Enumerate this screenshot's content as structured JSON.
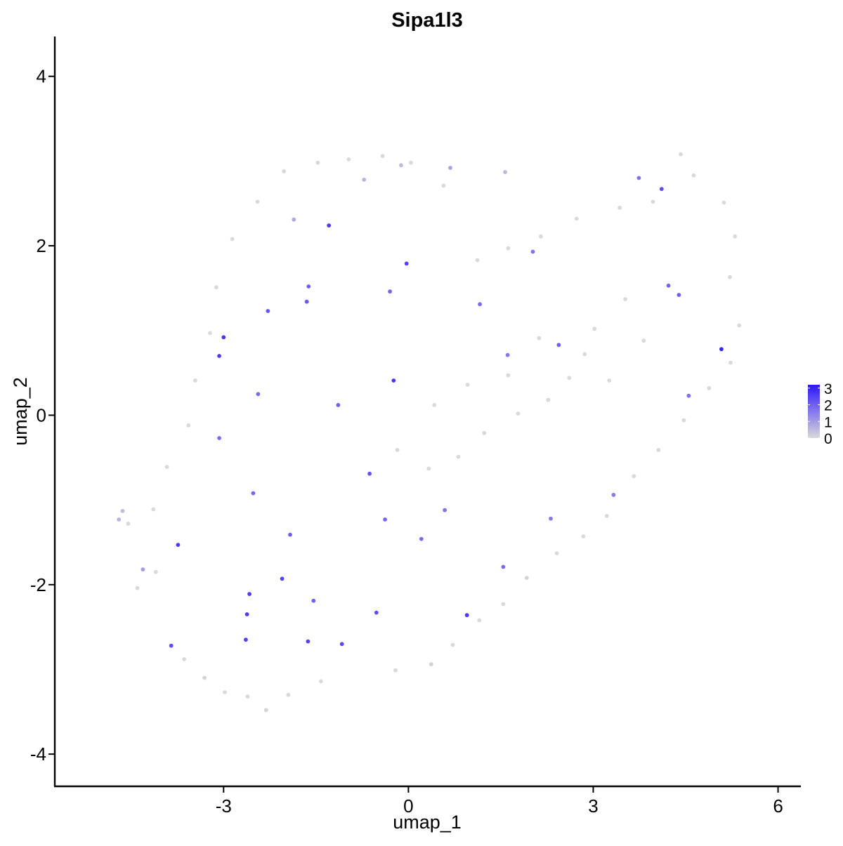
{
  "chart_data": {
    "type": "scatter",
    "title": "Sipa1l3",
    "xlabel": "umap_1",
    "ylabel": "umap_2",
    "xlim": [
      -5.74,
      6.37
    ],
    "ylim": [
      -4.38,
      4.47
    ],
    "x_ticks": [
      "-3",
      "0",
      "3",
      "6"
    ],
    "y_ticks": [
      "-4",
      "-2",
      "0",
      "2",
      "4"
    ],
    "grid": false,
    "legend": {
      "placement": "right",
      "ticks": [
        "3",
        "2",
        "1",
        "0"
      ],
      "range": [
        0,
        3.2
      ],
      "color_low": "#d9d9d9",
      "color_high": "#2e17ff"
    },
    "points": [
      [
        -1.29,
        2.24,
        2.6
      ],
      [
        -0.03,
        1.79,
        2.5
      ],
      [
        -3.0,
        0.92,
        2.7
      ],
      [
        -3.07,
        0.7,
        2.6
      ],
      [
        -0.24,
        0.41,
        2.7
      ],
      [
        5.08,
        0.78,
        3.0
      ],
      [
        4.11,
        2.67,
        2.3
      ],
      [
        -3.74,
        -1.53,
        2.6
      ],
      [
        -2.64,
        -2.65,
        2.5
      ],
      [
        -2.62,
        -2.35,
        2.6
      ],
      [
        -2.58,
        -2.11,
        2.6
      ],
      [
        -2.05,
        -1.93,
        2.5
      ],
      [
        0.95,
        -2.36,
        2.6
      ],
      [
        -0.52,
        -2.33,
        2.3
      ],
      [
        -1.63,
        -2.67,
        2.5
      ],
      [
        -1.08,
        -2.7,
        2.4
      ],
      [
        -3.85,
        -2.72,
        2.3
      ],
      [
        -1.54,
        -2.19,
        2.0
      ],
      [
        -0.63,
        -0.69,
        2.2
      ],
      [
        -1.92,
        -1.41,
        2.0
      ],
      [
        -2.28,
        1.23,
        2.2
      ],
      [
        -1.62,
        1.52,
        2.0
      ],
      [
        -1.65,
        1.34,
        2.1
      ],
      [
        -0.3,
        1.46,
        1.9
      ],
      [
        2.44,
        0.83,
        2.0
      ],
      [
        1.16,
        1.31,
        1.8
      ],
      [
        4.22,
        1.53,
        1.9
      ],
      [
        4.39,
        1.42,
        2.0
      ],
      [
        3.74,
        2.8,
        1.7
      ],
      [
        2.02,
        1.93,
        1.7
      ],
      [
        1.61,
        0.71,
        1.6
      ],
      [
        -2.52,
        -0.92,
        1.9
      ],
      [
        -3.07,
        -0.27,
        1.8
      ],
      [
        -2.44,
        0.25,
        1.8
      ],
      [
        -1.14,
        0.12,
        2.0
      ],
      [
        -0.38,
        -1.23,
        1.9
      ],
      [
        0.21,
        -1.46,
        1.8
      ],
      [
        0.59,
        -1.12,
        1.7
      ],
      [
        1.54,
        -1.79,
        1.8
      ],
      [
        2.31,
        -1.22,
        1.6
      ],
      [
        3.33,
        -0.94,
        1.6
      ],
      [
        4.55,
        0.23,
        1.7
      ],
      [
        -4.4,
        -2.04,
        0.0
      ],
      [
        -4.1,
        -1.85,
        0.0
      ],
      [
        -4.55,
        -1.28,
        0.0
      ],
      [
        -3.64,
        -2.88,
        0.0
      ],
      [
        -3.31,
        -3.1,
        0.1
      ],
      [
        -2.98,
        -3.27,
        0.0
      ],
      [
        -2.61,
        -3.32,
        0.0
      ],
      [
        -2.31,
        -3.48,
        0.1
      ],
      [
        -1.95,
        -3.3,
        0.0
      ],
      [
        -1.42,
        -3.14,
        0.0
      ],
      [
        -0.21,
        -3.01,
        0.0
      ],
      [
        0.37,
        -2.94,
        0.1
      ],
      [
        0.72,
        -2.71,
        0.0
      ],
      [
        1.15,
        -2.42,
        0.0
      ],
      [
        1.54,
        -2.23,
        0.0
      ],
      [
        1.92,
        -1.92,
        0.1
      ],
      [
        2.41,
        -1.63,
        0.0
      ],
      [
        2.84,
        -1.43,
        0.0
      ],
      [
        3.22,
        -1.19,
        0.0
      ],
      [
        3.66,
        -0.72,
        0.0
      ],
      [
        4.06,
        -0.41,
        0.0
      ],
      [
        4.47,
        -0.06,
        0.0
      ],
      [
        4.88,
        0.32,
        0.0
      ],
      [
        5.23,
        0.62,
        0.0
      ],
      [
        5.37,
        1.06,
        0.0
      ],
      [
        5.22,
        1.63,
        0.0
      ],
      [
        5.3,
        2.11,
        0.0
      ],
      [
        5.12,
        2.51,
        0.0
      ],
      [
        4.63,
        2.83,
        0.0
      ],
      [
        4.42,
        3.08,
        0.0
      ],
      [
        3.97,
        2.52,
        0.0
      ],
      [
        3.43,
        2.45,
        0.0
      ],
      [
        2.73,
        2.32,
        0.0
      ],
      [
        2.15,
        2.11,
        0.0
      ],
      [
        1.62,
        1.97,
        0.0
      ],
      [
        1.12,
        1.83,
        0.0
      ],
      [
        0.57,
        2.71,
        0.0
      ],
      [
        0.04,
        2.98,
        0.0
      ],
      [
        -0.42,
        3.06,
        0.0
      ],
      [
        -0.97,
        3.02,
        0.0
      ],
      [
        -1.47,
        2.98,
        0.0
      ],
      [
        -2.02,
        2.88,
        0.0
      ],
      [
        -2.45,
        2.52,
        0.0
      ],
      [
        -2.86,
        2.08,
        0.0
      ],
      [
        -3.12,
        1.51,
        0.0
      ],
      [
        -3.22,
        0.97,
        0.0
      ],
      [
        -3.46,
        0.41,
        0.0
      ],
      [
        -3.57,
        -0.12,
        0.0
      ],
      [
        -3.92,
        -0.61,
        0.0
      ],
      [
        -4.14,
        -1.11,
        0.0
      ],
      [
        -4.64,
        -1.13,
        0.5
      ],
      [
        -4.7,
        -1.23,
        0.6
      ],
      [
        -4.31,
        -1.82,
        1.0
      ],
      [
        -1.86,
        2.31,
        0.8
      ],
      [
        -0.72,
        2.78,
        0.6
      ],
      [
        -0.12,
        2.95,
        0.5
      ],
      [
        0.68,
        2.92,
        0.9
      ],
      [
        1.57,
        2.87,
        0.6
      ],
      [
        2.86,
        0.72,
        0.0
      ],
      [
        2.61,
        0.44,
        0.0
      ],
      [
        2.27,
        0.18,
        0.0
      ],
      [
        1.78,
        0.02,
        0.0
      ],
      [
        1.23,
        -0.21,
        0.0
      ],
      [
        0.81,
        -0.49,
        0.0
      ],
      [
        0.33,
        -0.63,
        0.0
      ],
      [
        -0.18,
        -0.41,
        0.0
      ],
      [
        0.42,
        0.12,
        0.0
      ],
      [
        0.96,
        0.36,
        0.0
      ],
      [
        1.62,
        0.47,
        0.0
      ],
      [
        2.12,
        0.91,
        0.0
      ],
      [
        3.02,
        1.02,
        0.0
      ],
      [
        3.52,
        1.37,
        0.0
      ],
      [
        3.82,
        0.88,
        0.0
      ],
      [
        3.26,
        0.41,
        0.0
      ]
    ]
  }
}
